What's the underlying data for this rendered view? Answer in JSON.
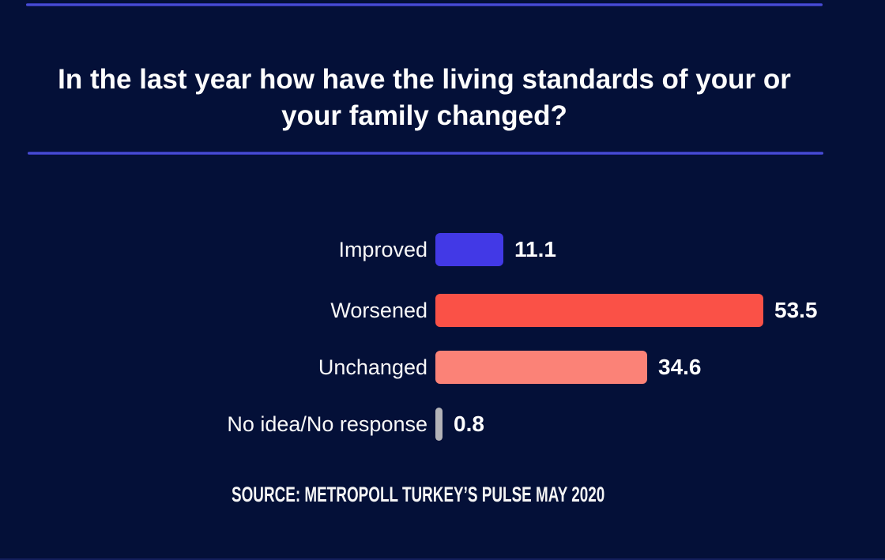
{
  "header": {
    "title_line1": "In the last year how have the living standards of your or",
    "title_line2": "your family changed?"
  },
  "colors": {
    "background": "#041038",
    "divider_blue": "#3f44d0",
    "improved_blue": "#4239e6",
    "worsened_red": "#fa5147",
    "unchanged_salmon": "#fb8277",
    "no_idea_gray": "#b3b3b8",
    "text": "#ffffff"
  },
  "chart_data": {
    "type": "bar",
    "orientation": "horizontal",
    "title": "In the last year how have the living standards of your or your family changed?",
    "categories": [
      "Improved",
      "Worsened",
      "Unchanged",
      "No idea/No response"
    ],
    "values": [
      11.1,
      53.5,
      34.6,
      0.8
    ],
    "value_labels": [
      "11.1",
      "53.5",
      "34.6",
      "0.8"
    ],
    "bar_colors": [
      "#4239e6",
      "#fa5147",
      "#fb8277",
      "#b3b3b8"
    ],
    "xlim": [
      0,
      60
    ],
    "grid": false,
    "legend": "none",
    "value_label_position": "end-of-bar",
    "source": "SOURCE: METROPOLL TURKEY’S PULSE MAY 2020"
  }
}
